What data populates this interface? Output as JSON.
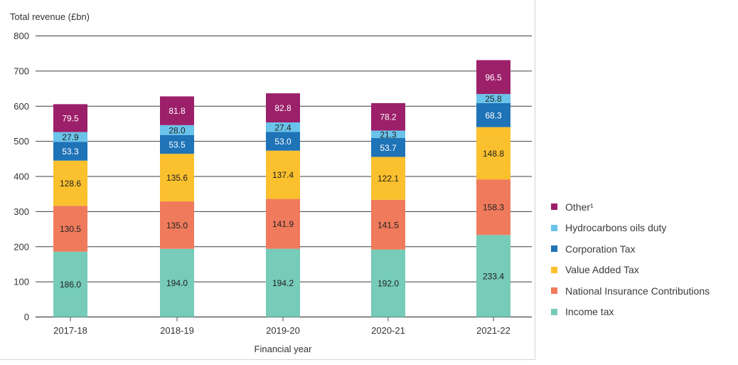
{
  "chart_data": {
    "type": "bar",
    "stacked": true,
    "ylabel": "Total revenue (£bn)",
    "xlabel": "Financial year",
    "ylim": [
      0,
      800
    ],
    "yticks": [
      0,
      100,
      200,
      300,
      400,
      500,
      600,
      700,
      800
    ],
    "grid": true,
    "legend_position": "right",
    "categories": [
      "2017-18",
      "2018-19",
      "2019-20",
      "2020-21",
      "2021-22"
    ],
    "series": [
      {
        "name": "Income tax",
        "color": "#76cbb9",
        "values": [
          186.0,
          194.0,
          194.2,
          192.0,
          233.4
        ],
        "labels": [
          "186.0",
          "194.0",
          "194.2",
          "192.0",
          "233.4"
        ]
      },
      {
        "name": "National Insurance Contributions",
        "color": "#ef7b5c",
        "values": [
          130.5,
          135.0,
          141.9,
          141.5,
          158.3
        ],
        "labels": [
          "130.5",
          "135.0",
          "141.9",
          "141.5",
          "158.3"
        ]
      },
      {
        "name": "Value Added Tax",
        "color": "#fbc02d",
        "values": [
          128.6,
          135.6,
          137.4,
          122.1,
          148.8
        ],
        "labels": [
          "128.6",
          "135.6",
          "137.4",
          "122.1",
          "148.8"
        ]
      },
      {
        "name": "Corporation Tax",
        "color": "#1f73b7",
        "values": [
          53.3,
          53.5,
          53.0,
          53.7,
          68.3
        ],
        "labels": [
          "53.3",
          "53.5",
          "53.0",
          "53.7",
          "68.3"
        ]
      },
      {
        "name": "Hydrocarbons oils duty",
        "color": "#6ac3ea",
        "values": [
          27.9,
          28.0,
          27.4,
          21.3,
          25.8
        ],
        "labels": [
          "27.9",
          "28.0",
          "27.4",
          "21.3",
          "25.8"
        ]
      },
      {
        "name": "Other¹",
        "color": "#9c1f6a",
        "values": [
          79.5,
          81.8,
          82.8,
          78.2,
          96.5
        ],
        "labels": [
          "79.5",
          "81.8",
          "82.8",
          "78.2",
          "96.5"
        ]
      }
    ],
    "legend_order": [
      "Other¹",
      "Hydrocarbons oils duty",
      "Corporation Tax",
      "Value Added Tax",
      "National Insurance Contributions",
      "Income tax"
    ]
  }
}
